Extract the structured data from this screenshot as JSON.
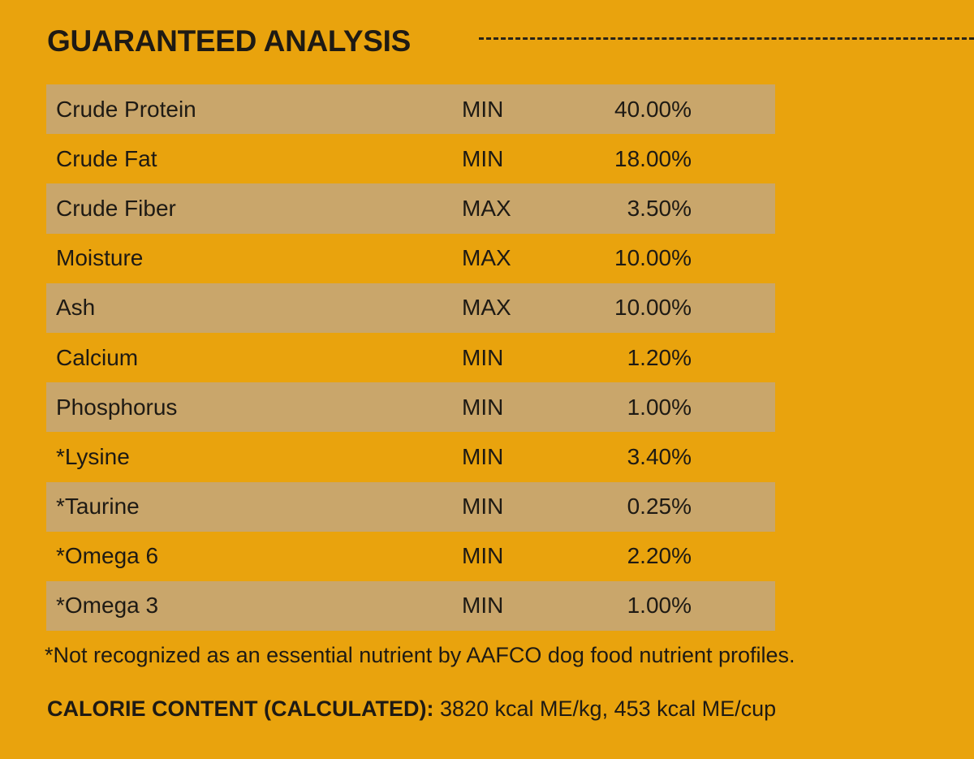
{
  "header": {
    "title": "GUARANTEED ANALYSIS"
  },
  "table": {
    "rows": [
      [
        "Crude Protein",
        "MIN",
        "40.00%"
      ],
      [
        "Crude Fat",
        "MIN",
        "18.00%"
      ],
      [
        "Crude Fiber",
        "MAX",
        "3.50%"
      ],
      [
        "Moisture",
        "MAX",
        "10.00%"
      ],
      [
        "Ash",
        "MAX",
        "10.00%"
      ],
      [
        "Calcium",
        "MIN",
        "1.20%"
      ],
      [
        "Phosphorus",
        "MIN",
        "1.00%"
      ],
      [
        "*Lysine",
        "MIN",
        "3.40%"
      ],
      [
        "*Taurine",
        "MIN",
        "0.25%"
      ],
      [
        "*Omega 6",
        "MIN",
        "2.20%"
      ],
      [
        "*Omega 3",
        "MIN",
        "1.00%"
      ]
    ]
  },
  "footnote": "*Not recognized as an essential nutrient by AAFCO dog food nutrient profiles.",
  "calorie": {
    "label": "CALORIE CONTENT (CALCULATED):",
    "value": "3820 kcal ME/kg, 453 kcal ME/cup"
  }
}
